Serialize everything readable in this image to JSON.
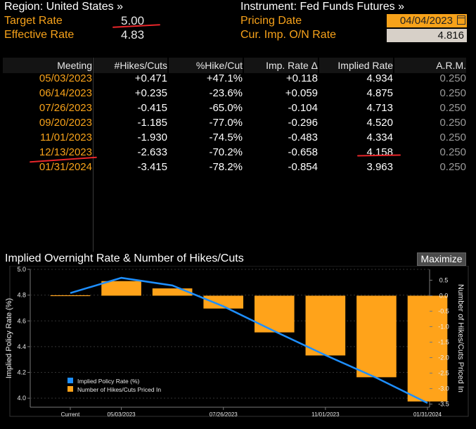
{
  "header": {
    "region": "Region: United States »",
    "instrument": "Instrument: Fed Funds Futures »",
    "target_rate_label": "Target Rate",
    "target_rate_value": "5.00",
    "effective_rate_label": "Effective Rate",
    "effective_rate_value": "4.83",
    "pricing_date_label": "Pricing Date",
    "pricing_date_value": "04/04/2023",
    "imp_rate_label": "Cur. Imp. O/N Rate",
    "imp_rate_value": "4.816"
  },
  "table": {
    "columns": [
      "Meeting",
      "#Hikes/Cuts",
      "%Hike/Cut",
      "Imp. Rate Δ",
      "Implied Rate",
      "A.R.M."
    ],
    "rows": [
      {
        "meeting": "05/03/2023",
        "hikes": "+0.471",
        "pct": "+47.1%",
        "delta": "+0.118",
        "implied": "4.934",
        "arm": "0.250"
      },
      {
        "meeting": "06/14/2023",
        "hikes": "+0.235",
        "pct": "-23.6%",
        "delta": "+0.059",
        "implied": "4.875",
        "arm": "0.250"
      },
      {
        "meeting": "07/26/2023",
        "hikes": "-0.415",
        "pct": "-65.0%",
        "delta": "-0.104",
        "implied": "4.713",
        "arm": "0.250"
      },
      {
        "meeting": "09/20/2023",
        "hikes": "-1.185",
        "pct": "-77.0%",
        "delta": "-0.296",
        "implied": "4.520",
        "arm": "0.250"
      },
      {
        "meeting": "11/01/2023",
        "hikes": "-1.930",
        "pct": "-74.5%",
        "delta": "-0.483",
        "implied": "4.334",
        "arm": "0.250"
      },
      {
        "meeting": "12/13/2023",
        "hikes": "-2.633",
        "pct": "-70.2%",
        "delta": "-0.658",
        "implied": "4.158",
        "arm": "0.250"
      },
      {
        "meeting": "01/31/2024",
        "hikes": "-3.415",
        "pct": "-78.2%",
        "delta": "-0.854",
        "implied": "3.963",
        "arm": "0.250"
      }
    ]
  },
  "chart": {
    "title": "Implied Overnight Rate & Number of Hikes/Cuts",
    "maximize_label": "Maximize"
  },
  "chart_data": {
    "type": "bar",
    "title": "Implied Overnight Rate & Number of Hikes/Cuts",
    "categories": [
      "Current",
      "05/03/2023",
      "06/14/2023",
      "07/26/2023",
      "09/20/2023",
      "11/01/2023",
      "12/13/2023",
      "01/31/2024"
    ],
    "x_tick_labels": [
      "Current",
      "05/03/2023",
      "07/26/2023",
      "11/01/2023",
      "01/31/2024"
    ],
    "series": [
      {
        "name": "Implied Policy Rate (%)",
        "type": "line",
        "axis": "left",
        "color": "#1e8fff",
        "values": [
          4.816,
          4.934,
          4.875,
          4.713,
          4.52,
          4.334,
          4.158,
          3.963
        ]
      },
      {
        "name": "Number of Hikes/Cuts Priced In",
        "type": "bar",
        "axis": "right",
        "color": "#ffa31a",
        "values": [
          0,
          0.471,
          0.235,
          -0.415,
          -1.185,
          -1.93,
          -2.633,
          -3.415
        ]
      }
    ],
    "ylabel": "Implied Policy Rate (%)",
    "ylabel_right": "Number of Hikes/Cuts Priced In",
    "ylim": [
      3.93,
      5.0
    ],
    "yticks": [
      "4.0",
      "4.2",
      "4.4",
      "4.6",
      "4.8",
      "5.0"
    ],
    "ylim_right": [
      -3.6,
      0.85
    ],
    "yticks_right": [
      "-3.5",
      "-3.0",
      "-2.5",
      "-2.0",
      "-1.5",
      "-1.0",
      "-0.5",
      "0.0",
      "0.5"
    ],
    "legend": "bottom-left"
  },
  "colors": {
    "accent": "#f7a21a",
    "line": "#1e8fff",
    "bar": "#ffa31a",
    "annotation": "#e8262a"
  }
}
